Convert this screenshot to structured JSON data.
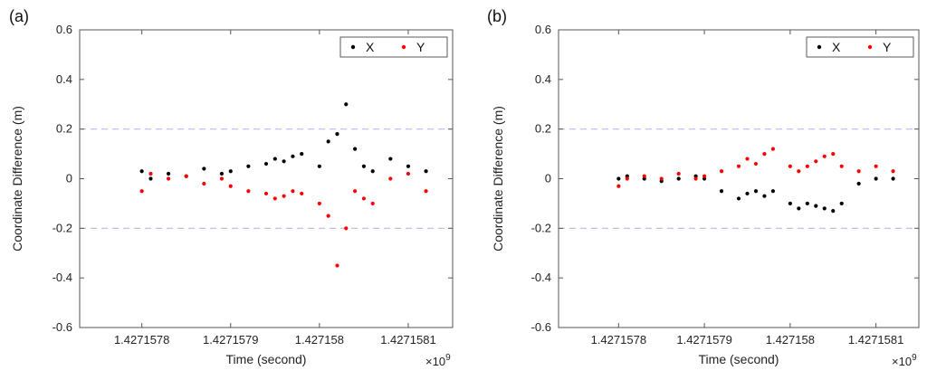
{
  "chart_data": [
    {
      "type": "scatter",
      "panel_label": "(a)",
      "xlabel": "Time (second)",
      "ylabel": "Coordinate Difference (m)",
      "x_scale_label": "×10",
      "x_scale_exp": "9",
      "x_ticks": [
        1.4271578,
        1.4271579,
        1.427158,
        1.4271581
      ],
      "x_tick_labels": [
        "1.4271578",
        "1.4271579",
        "1.427158",
        "1.4271581"
      ],
      "xlim": [
        1.42715773,
        1.42715815
      ],
      "y_ticks": [
        -0.6,
        -0.4,
        -0.2,
        0,
        0.2,
        0.4,
        0.6
      ],
      "y_tick_labels": [
        "-0.6",
        "-0.4",
        "-0.2",
        "0",
        "0.2",
        "0.4",
        "0.6"
      ],
      "ylim": [
        -0.6,
        0.6
      ],
      "reference_lines": [
        0.2,
        -0.2
      ],
      "legend_position": "top-right",
      "grid": false,
      "series": [
        {
          "name": "X",
          "color": "#000000",
          "x": [
            1.4271578,
            1.42715781,
            1.42715783,
            1.42715785,
            1.42715787,
            1.42715789,
            1.4271579,
            1.42715792,
            1.42715794,
            1.42715795,
            1.42715796,
            1.42715797,
            1.42715798,
            1.427158,
            1.42715801,
            1.42715802,
            1.42715803,
            1.42715804,
            1.42715805,
            1.42715806,
            1.42715808,
            1.4271581,
            1.42715812
          ],
          "y": [
            0.03,
            0.0,
            0.02,
            0.01,
            0.04,
            0.02,
            0.03,
            0.05,
            0.06,
            0.08,
            0.07,
            0.09,
            0.1,
            0.05,
            0.15,
            0.18,
            0.3,
            0.12,
            0.05,
            0.03,
            0.08,
            0.05,
            0.03
          ]
        },
        {
          "name": "Y",
          "color": "#ff0000",
          "x": [
            1.4271578,
            1.42715781,
            1.42715783,
            1.42715785,
            1.42715787,
            1.42715789,
            1.4271579,
            1.42715792,
            1.42715794,
            1.42715795,
            1.42715796,
            1.42715797,
            1.42715798,
            1.427158,
            1.42715801,
            1.42715802,
            1.42715803,
            1.42715804,
            1.42715805,
            1.42715806,
            1.42715808,
            1.4271581,
            1.42715812
          ],
          "y": [
            -0.05,
            0.02,
            0.0,
            0.01,
            -0.02,
            0.0,
            -0.03,
            -0.05,
            -0.06,
            -0.08,
            -0.07,
            -0.05,
            -0.06,
            -0.1,
            -0.15,
            -0.35,
            -0.2,
            -0.05,
            -0.08,
            -0.1,
            0.0,
            0.02,
            -0.05
          ]
        }
      ]
    },
    {
      "type": "scatter",
      "panel_label": "(b)",
      "xlabel": "Time (second)",
      "ylabel": "Coordinate Difference (m)",
      "x_scale_label": "×10",
      "x_scale_exp": "9",
      "x_ticks": [
        1.4271578,
        1.4271579,
        1.427158,
        1.4271581
      ],
      "x_tick_labels": [
        "1.4271578",
        "1.4271579",
        "1.427158",
        "1.4271581"
      ],
      "xlim": [
        1.42715773,
        1.42715815
      ],
      "y_ticks": [
        -0.6,
        -0.4,
        -0.2,
        0,
        0.2,
        0.4,
        0.6
      ],
      "y_tick_labels": [
        "-0.6",
        "-0.4",
        "-0.2",
        "0",
        "0.2",
        "0.4",
        "0.6"
      ],
      "ylim": [
        -0.6,
        0.6
      ],
      "reference_lines": [
        0.2,
        -0.2
      ],
      "legend_position": "top-right",
      "grid": false,
      "series": [
        {
          "name": "X",
          "color": "#000000",
          "x": [
            1.4271578,
            1.42715781,
            1.42715783,
            1.42715785,
            1.42715787,
            1.42715789,
            1.4271579,
            1.42715792,
            1.42715794,
            1.42715795,
            1.42715796,
            1.42715797,
            1.42715798,
            1.427158,
            1.42715801,
            1.42715802,
            1.42715803,
            1.42715804,
            1.42715805,
            1.42715806,
            1.42715808,
            1.4271581,
            1.42715812
          ],
          "y": [
            0.0,
            0.01,
            0.0,
            -0.01,
            0.0,
            0.01,
            0.0,
            -0.05,
            -0.08,
            -0.06,
            -0.05,
            -0.07,
            -0.05,
            -0.1,
            -0.12,
            -0.1,
            -0.11,
            -0.12,
            -0.13,
            -0.1,
            -0.02,
            0.0,
            0.0
          ]
        },
        {
          "name": "Y",
          "color": "#ff0000",
          "x": [
            1.4271578,
            1.42715781,
            1.42715783,
            1.42715785,
            1.42715787,
            1.42715789,
            1.4271579,
            1.42715792,
            1.42715794,
            1.42715795,
            1.42715796,
            1.42715797,
            1.42715798,
            1.427158,
            1.42715801,
            1.42715802,
            1.42715803,
            1.42715804,
            1.42715805,
            1.42715806,
            1.42715808,
            1.4271581,
            1.42715812
          ],
          "y": [
            -0.03,
            0.0,
            0.01,
            0.0,
            0.02,
            0.0,
            0.01,
            0.03,
            0.05,
            0.08,
            0.06,
            0.1,
            0.12,
            0.05,
            0.03,
            0.05,
            0.07,
            0.09,
            0.1,
            0.05,
            0.03,
            0.05,
            0.03
          ]
        }
      ]
    }
  ]
}
